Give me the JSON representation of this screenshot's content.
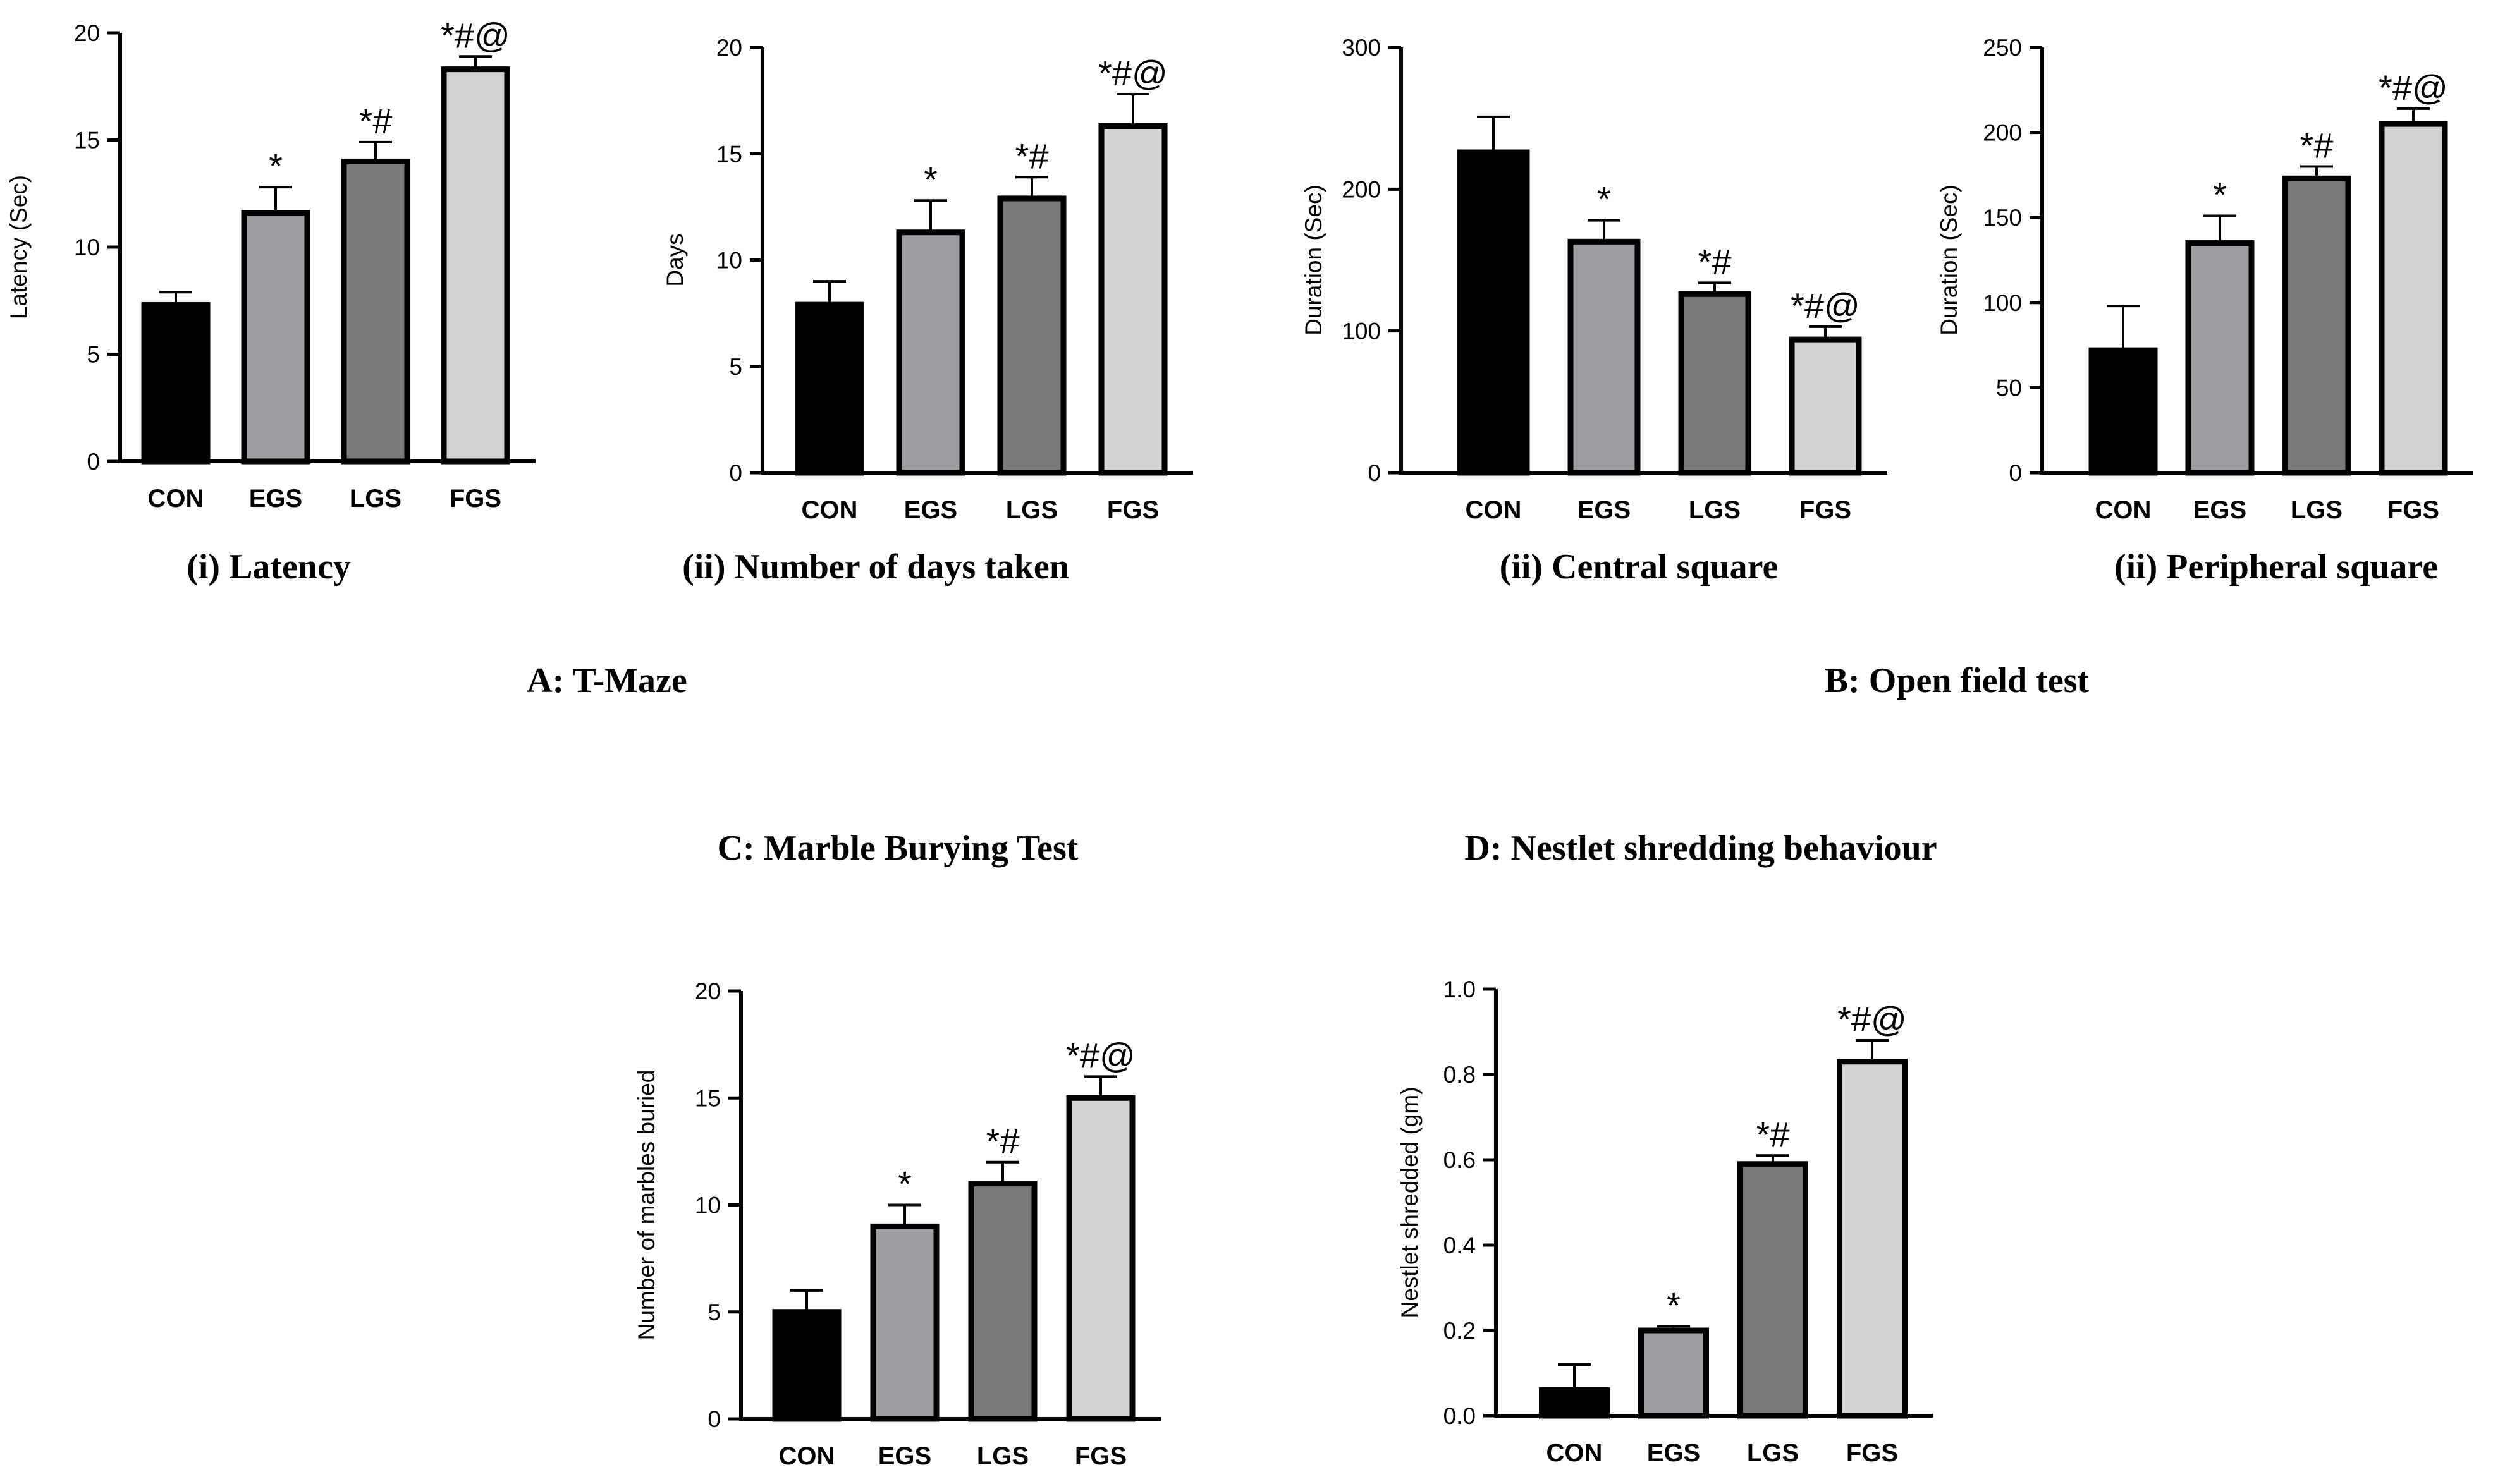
{
  "chart_data": [
    {
      "id": "tmaze-latency",
      "type": "bar",
      "caption": "(i) Latency",
      "ylabel": "Latency (Sec)",
      "ylim": [
        0,
        20
      ],
      "yticks": [
        0,
        5,
        10,
        15,
        20
      ],
      "categories": [
        "CON",
        "EGS",
        "LGS",
        "FGS"
      ],
      "values": [
        7.3,
        11.6,
        14.0,
        18.3
      ],
      "errors": [
        0.6,
        1.2,
        0.9,
        0.6
      ],
      "significance": [
        "",
        "*",
        "*#",
        "*#@"
      ]
    },
    {
      "id": "tmaze-days",
      "type": "bar",
      "caption": "(ii) Number of days taken",
      "ylabel": "Days",
      "ylim": [
        0,
        20
      ],
      "yticks": [
        0,
        5,
        10,
        15,
        20
      ],
      "categories": [
        "CON",
        "EGS",
        "LGS",
        "FGS"
      ],
      "values": [
        7.9,
        11.3,
        12.9,
        16.3
      ],
      "errors": [
        1.1,
        1.5,
        1.0,
        1.5
      ],
      "significance": [
        "",
        "*",
        "*#",
        "*#@"
      ]
    },
    {
      "id": "openfield-central",
      "type": "bar",
      "caption": "(ii) Central  square",
      "ylabel": "Duration (Sec)",
      "ylim": [
        0,
        300
      ],
      "yticks": [
        0,
        100,
        200,
        300
      ],
      "categories": [
        "CON",
        "EGS",
        "LGS",
        "FGS"
      ],
      "values": [
        226,
        163,
        126,
        94
      ],
      "errors": [
        25,
        15,
        8,
        9
      ],
      "significance": [
        "",
        "*",
        "*#",
        "*#@"
      ]
    },
    {
      "id": "openfield-peripheral",
      "type": "bar",
      "caption": "(ii) Peripheral square",
      "ylabel": "Duration (Sec)",
      "ylim": [
        0,
        250
      ],
      "yticks": [
        0,
        50,
        100,
        150,
        200,
        250
      ],
      "categories": [
        "CON",
        "EGS",
        "LGS",
        "FGS"
      ],
      "values": [
        72,
        135,
        173,
        205
      ],
      "errors": [
        26,
        16,
        7,
        9
      ],
      "significance": [
        "",
        "*",
        "*#",
        "*#@"
      ]
    },
    {
      "id": "marble-burying",
      "type": "bar",
      "caption": "",
      "ylabel": "Number of marbles buried",
      "ylim": [
        0,
        20
      ],
      "yticks": [
        0,
        5,
        10,
        15,
        20
      ],
      "categories": [
        "CON",
        "EGS",
        "LGS",
        "FGS"
      ],
      "values": [
        5.0,
        9.0,
        11.0,
        15.0
      ],
      "errors": [
        1.0,
        1.0,
        1.0,
        1.0
      ],
      "significance": [
        "",
        "*",
        "*#",
        "*#@"
      ]
    },
    {
      "id": "nestlet-shredding",
      "type": "bar",
      "caption": "",
      "ylabel": "Nestlet shredded (gm)",
      "ylim": [
        0,
        1.0
      ],
      "yticks": [
        0.0,
        0.2,
        0.4,
        0.6,
        0.8,
        1.0
      ],
      "ytick_labels": [
        "0.0",
        "0.2",
        "0.4",
        "0.6",
        "0.8",
        "1.0"
      ],
      "categories": [
        "CON",
        "EGS",
        "LGS",
        "FGS"
      ],
      "values": [
        0.06,
        0.2,
        0.59,
        0.83
      ],
      "errors": [
        0.06,
        0.01,
        0.02,
        0.05
      ],
      "significance": [
        "",
        "*",
        "*#",
        "*#@"
      ]
    }
  ],
  "sections": {
    "a": "A: T-Maze",
    "b": "B: Open field test",
    "c": "C: Marble Burying Test",
    "d": "D: Nestlet shredding behaviour"
  },
  "colors": {
    "CON": "#000000",
    "EGS": "#9d9ca3",
    "LGS": "#7a7a7a",
    "FGS": "#d3d3d3"
  }
}
